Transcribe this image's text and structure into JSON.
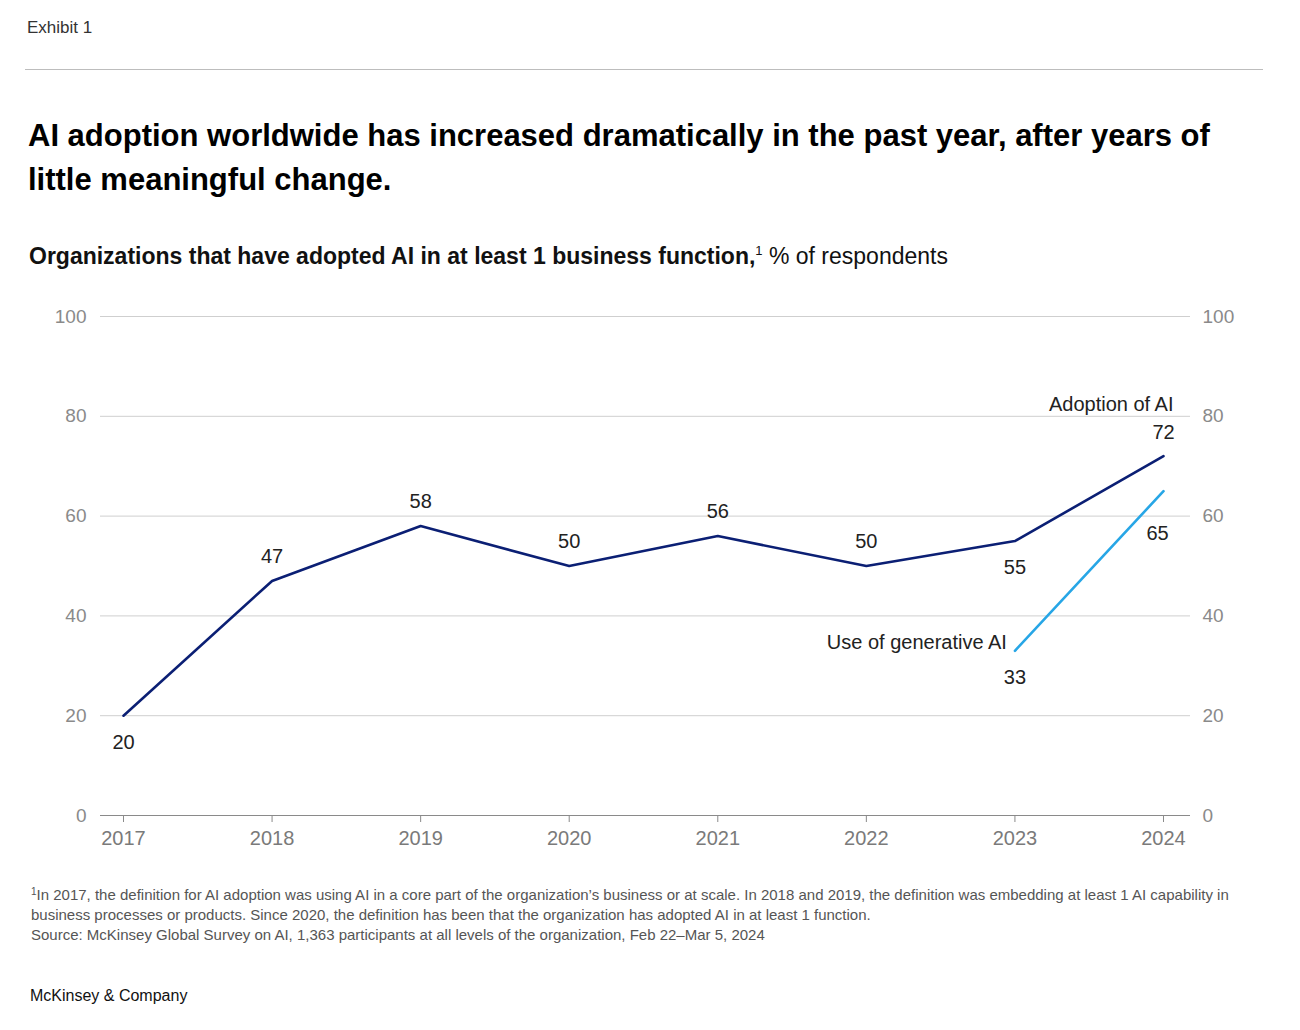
{
  "chart_data": {
    "type": "line",
    "exhibit": "Exhibit 1",
    "title": "AI adoption worldwide has increased dramatically in the past year, after years of little meaningful change.",
    "subtitle": "Organizations that have adopted AI in at least 1 business function,",
    "unit_label": "% of respondents",
    "footnote": {
      "mark": "1",
      "text": "In 2017, the definition for AI adoption was using AI in a core part of the organization’s business or at scale. In 2018 and 2019, the definition was embedding at least 1 AI capability in business processes or products. Since 2020, the definition has been that the organization has adopted AI in at least 1 function."
    },
    "source": "Source: McKinsey Global Survey on AI, 1,363 participants at all levels of the organization, Feb 22–Mar 5, 2024",
    "brand": "McKinsey & Company",
    "x": [
      2017,
      2018,
      2019,
      2020,
      2021,
      2022,
      2023,
      2024
    ],
    "xlim": [
      2017,
      2024
    ],
    "xticks": [
      2017,
      2018,
      2019,
      2020,
      2021,
      2022,
      2023,
      2024
    ],
    "ylim": [
      0,
      100
    ],
    "yticks": [
      0,
      20,
      40,
      60,
      80,
      100
    ],
    "grid": true,
    "data_labels": true,
    "series": [
      {
        "name": "Adoption of AI",
        "color": "#0b1f74",
        "values": [
          20,
          47,
          58,
          50,
          56,
          50,
          55,
          72
        ]
      },
      {
        "name": "Use of generative AI",
        "color": "#27a6e6",
        "values": [
          null,
          null,
          null,
          null,
          null,
          null,
          33,
          65
        ]
      }
    ]
  }
}
